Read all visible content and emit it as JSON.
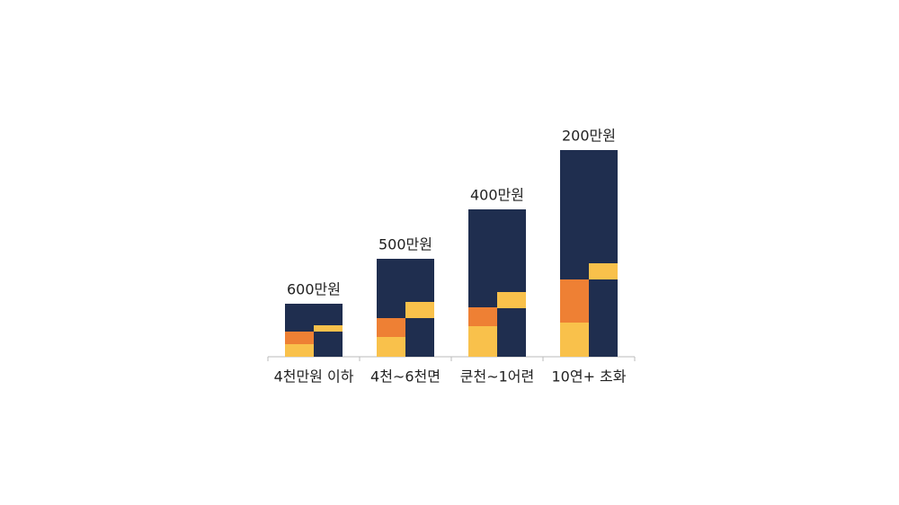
{
  "chart_data": {
    "type": "split-stacked-bar",
    "categories": [
      "4천만원 이하",
      "4천~6천면",
      "쿤천~1어련",
      "10연+ 초화"
    ],
    "top_labels": [
      "600만원",
      "500만원",
      "400만원",
      "200만원"
    ],
    "ylim": [
      0,
      240
    ],
    "left_series": [
      {
        "color": "#f9c14b",
        "values": [
          14,
          22,
          34,
          38
        ]
      },
      {
        "color": "#ee8034",
        "values": [
          14,
          21,
          21,
          48
        ]
      },
      {
        "color": "#1f2e4f",
        "values": [
          31,
          66,
          109,
          144
        ]
      }
    ],
    "right_series": [
      {
        "color": "#1f2e4f",
        "values": [
          28,
          43,
          54,
          86
        ]
      },
      {
        "color": "#f9c14b",
        "values": [
          7,
          18,
          18,
          18
        ]
      },
      {
        "color": "#1f2e4f",
        "values": [
          24,
          48,
          92,
          126
        ]
      }
    ]
  }
}
